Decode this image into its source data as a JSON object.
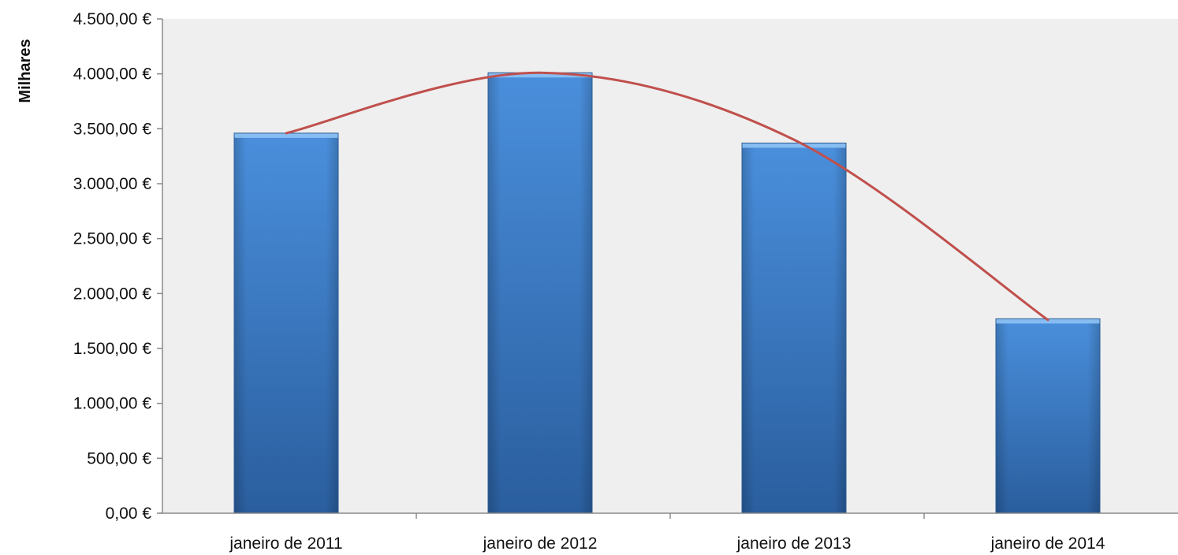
{
  "chart_data": {
    "type": "bar",
    "title": "",
    "xlabel": "",
    "ylabel": "Milhares",
    "categories": [
      "janeiro de 2011",
      "janeiro de 2012",
      "janeiro de 2013",
      "janeiro de 2014"
    ],
    "values": [
      3460,
      4010,
      3370,
      1770
    ],
    "trendline": {
      "type": "polynomial",
      "values": [
        3460,
        4010,
        3400,
        1760
      ],
      "color": "#c0504d"
    },
    "ylim": [
      0,
      4500
    ],
    "yticks": [
      0,
      500,
      1000,
      1500,
      2000,
      2500,
      3000,
      3500,
      4000,
      4500
    ],
    "ytick_labels": [
      "0,00 €",
      "500,00 €",
      "1.000,00 €",
      "1.500,00 €",
      "2.000,00 €",
      "2.500,00 €",
      "3.000,00 €",
      "3.500,00 €",
      "4.000,00 €",
      "4.500,00 €"
    ],
    "grid": false,
    "legend": "none",
    "colors": {
      "bar_top": "#4a8fdc",
      "bar_bottom": "#2a5e9e",
      "plot_background": "#efefef",
      "trendline": "#c0504d"
    }
  }
}
